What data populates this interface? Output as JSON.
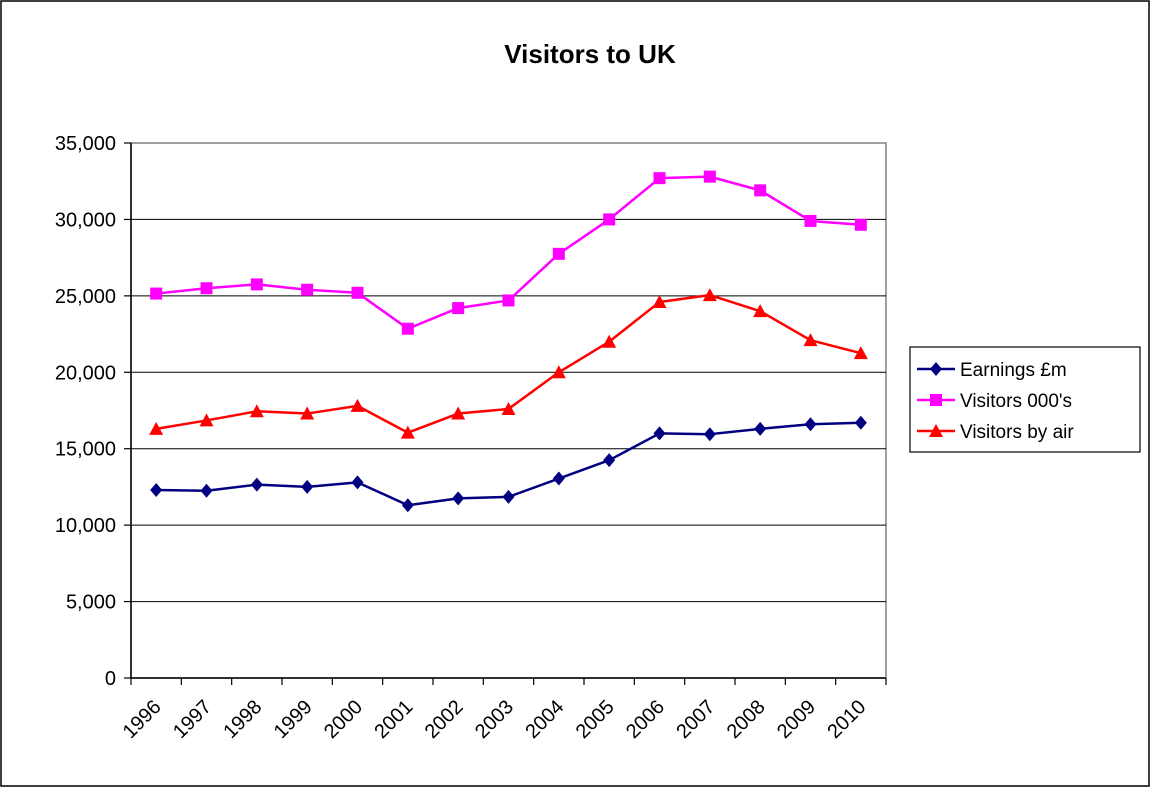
{
  "chart_data": {
    "type": "line",
    "title": "Visitors to UK",
    "xlabel": "",
    "ylabel": "",
    "categories": [
      "1996",
      "1997",
      "1998",
      "1999",
      "2000",
      "2001",
      "2002",
      "2003",
      "2004",
      "2005",
      "2006",
      "2007",
      "2008",
      "2009",
      "2010"
    ],
    "ylim": [
      0,
      35000
    ],
    "yticks": [
      0,
      5000,
      10000,
      15000,
      20000,
      25000,
      30000,
      35000
    ],
    "ytick_labels": [
      "0",
      "5,000",
      "10,000",
      "15,000",
      "20,000",
      "25,000",
      "30,000",
      "35,000"
    ],
    "grid": true,
    "legend_position": "right",
    "series": [
      {
        "name": "Earnings £m",
        "color": "#000080",
        "marker": "diamond",
        "values": [
          12300,
          12250,
          12650,
          12500,
          12800,
          11300,
          11750,
          11850,
          13050,
          14250,
          16000,
          15950,
          16300,
          16600,
          16700
        ]
      },
      {
        "name": "Visitors 000's",
        "color": "#ff00ff",
        "marker": "square",
        "values": [
          25150,
          25500,
          25750,
          25400,
          25200,
          22850,
          24200,
          24700,
          27750,
          30000,
          32700,
          32800,
          31900,
          29900,
          29650
        ]
      },
      {
        "name": "Visitors by air",
        "color": "#ff0000",
        "marker": "triangle",
        "values": [
          16300,
          16850,
          17450,
          17300,
          17800,
          16050,
          17300,
          17600,
          20000,
          22000,
          24600,
          25050,
          24000,
          22100,
          21250
        ]
      }
    ]
  }
}
